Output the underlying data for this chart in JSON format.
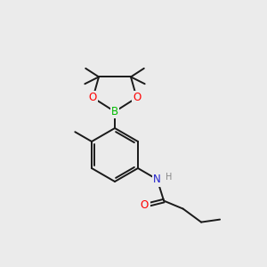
{
  "bg_color": "#ebebeb",
  "bond_color": "#1a1a1a",
  "bond_width": 1.4,
  "atom_colors": {
    "B": "#00bb00",
    "O": "#ff0000",
    "N": "#2222cc",
    "H": "#888888"
  },
  "font_size": 8.5
}
